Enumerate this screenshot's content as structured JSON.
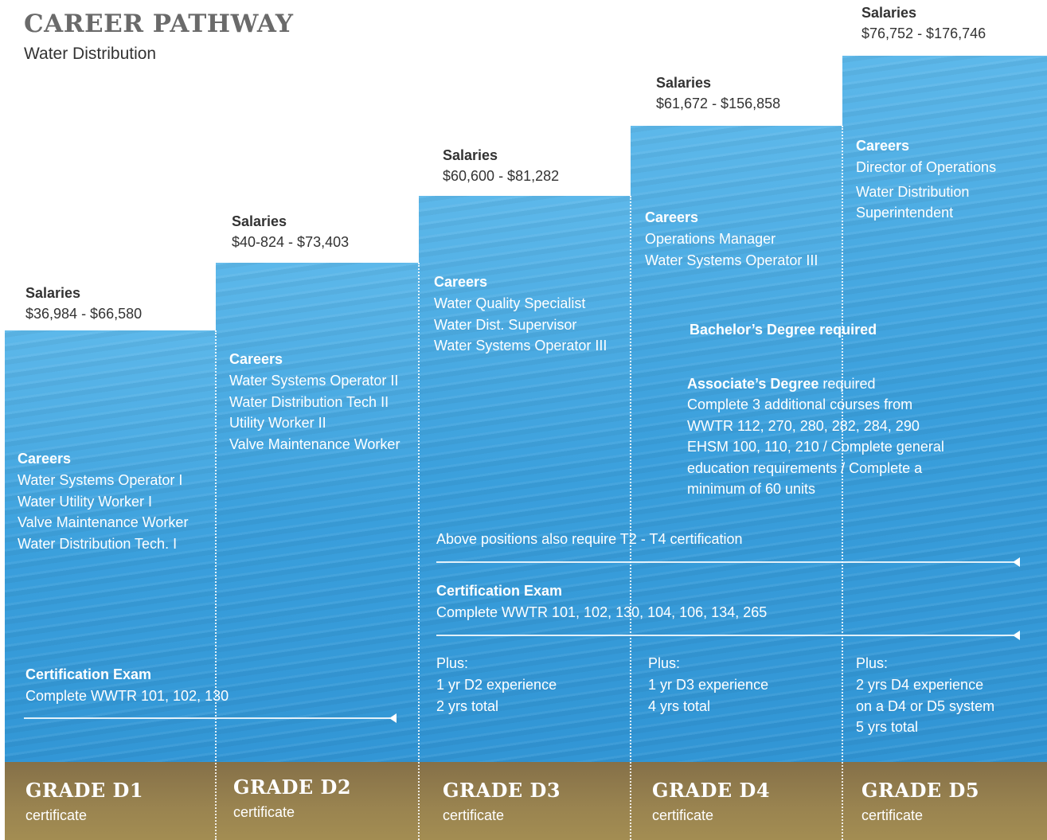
{
  "header": {
    "title": "CAREER PATHWAY",
    "subtitle": "Water Distribution"
  },
  "grades": [
    {
      "salaries_label": "Salaries",
      "salary": "$36,984 - $66,580",
      "careers_label": "Careers",
      "careers": [
        "Water Systems Operator I",
        "Water Utility Worker I",
        "Valve Maintenance Worker",
        "Water Distribution Tech. I"
      ],
      "grade": "GRADE D1",
      "certificate": "certificate"
    },
    {
      "salaries_label": "Salaries",
      "salary": "$40-824 - $73,403",
      "careers_label": "Careers",
      "careers": [
        "Water Systems Operator II",
        "Water Distribution Tech II",
        "Utility Worker II",
        "Valve Maintenance Worker"
      ],
      "grade": "GRADE D2",
      "certificate": "certificate"
    },
    {
      "salaries_label": "Salaries",
      "salary": "$60,600 - $81,282",
      "careers_label": "Careers",
      "careers": [
        "Water Quality Specialist",
        "Water Dist. Supervisor",
        "Water Systems Operator III"
      ],
      "grade": "GRADE D3",
      "certificate": "certificate",
      "plus": {
        "label": "Plus:",
        "lines": [
          "1 yr D2 experience",
          "2 yrs total"
        ]
      }
    },
    {
      "salaries_label": "Salaries",
      "salary": "$61,672 - $156,858",
      "careers_label": "Careers",
      "careers": [
        "Operations Manager",
        "Water Systems Operator III"
      ],
      "grade": "GRADE D4",
      "certificate": "certificate",
      "plus": {
        "label": "Plus:",
        "lines": [
          "1 yr D3 experience",
          "4 yrs total"
        ]
      }
    },
    {
      "salaries_label": "Salaries",
      "salary": "$76,752 - $176,746",
      "careers_label": "Careers",
      "careers": [
        "Director of Operations",
        "Water Distribution Superintendent"
      ],
      "grade": "GRADE D5",
      "certificate": "certificate",
      "plus": {
        "label": "Plus:",
        "lines": [
          "2 yrs D4 experience",
          "on a D4 or D5 system",
          "5 yrs total"
        ]
      }
    }
  ],
  "d1_exam": {
    "title": "Certification Exam",
    "text": "Complete WWTR 101, 102, 130"
  },
  "upper_exam": {
    "title": "Certification Exam",
    "text": "Complete WWTR 101, 102, 130, 104, 106, 134, 265"
  },
  "t_cert_note": "Above positions also require T2 - T4 certification",
  "bachelor_note": "Bachelor’s Degree required",
  "associate": {
    "degree": "Associate’s Degree",
    "required": " required",
    "lines": [
      "Complete 3 additional courses from",
      "WWTR 112, 270, 280, 282, 284, 290",
      "EHSM 100, 110, 210 / Complete general",
      "education requirements / Complete a",
      "minimum of 60 units"
    ]
  }
}
